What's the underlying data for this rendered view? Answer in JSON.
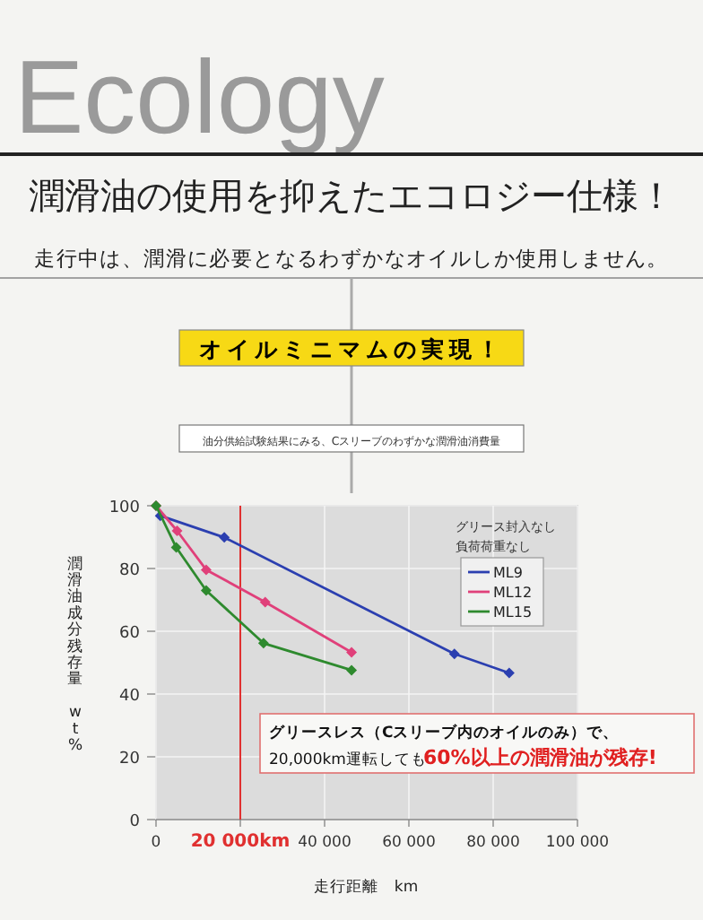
{
  "chart_data": {
    "type": "line",
    "title": "潤滑油の使用を抑えたエコロジー仕様！",
    "subtitle": "走行中は、潤滑に必要となるわずかなオイルしか使用しません。",
    "annotations": [
      "Ecology",
      "オイルミニマムの実現！",
      "油分供給試験結果にみる、Cスリーブのわずかな潤滑油消費量",
      "グリース封入なし",
      "負荷荷重なし",
      "グリースレス（Cスリーブ内のオイルのみ）で、",
      "20,000km運転しても",
      "60%以上の潤滑油が残存!"
    ],
    "xlabel": "走行距離　km",
    "ylabel": "潤滑油成分残存量　wt%",
    "xlim": [
      0,
      100000
    ],
    "ylim": [
      0,
      100
    ],
    "xticks": [
      {
        "value": 0,
        "label": "0"
      },
      {
        "value": 20000,
        "label": null
      },
      {
        "value": 40000,
        "label": "40 000"
      },
      {
        "value": 60000,
        "label": "60 000"
      },
      {
        "value": 80000,
        "label": "80 000"
      },
      {
        "value": 100000,
        "label": "100 000"
      }
    ],
    "yticks": [
      0,
      20,
      40,
      60,
      80,
      100
    ],
    "grid": true,
    "legend": "top right",
    "marker": "diamond",
    "line_style": "solid",
    "ref_lines": [
      {
        "axis": "x",
        "value": 20000,
        "label": "20 000km",
        "color": "#e03030"
      }
    ],
    "series": [
      {
        "name": "ML9",
        "color": "#2b3fb0",
        "x": [
          1000,
          16200,
          70800,
          83800
        ],
        "values": [
          96.8,
          89.9,
          52.8,
          46.7
        ]
      },
      {
        "name": "ML12",
        "color": "#e0407a",
        "x": [
          0,
          5000,
          11900,
          25900,
          46400
        ],
        "values": [
          100,
          92,
          79.6,
          69.3,
          53.3
        ]
      },
      {
        "name": "ML15",
        "color": "#2e8a2e",
        "x": [
          0,
          4800,
          11900,
          25500,
          46400
        ],
        "values": [
          100,
          86.7,
          73,
          56.2,
          47.6
        ]
      }
    ]
  }
}
